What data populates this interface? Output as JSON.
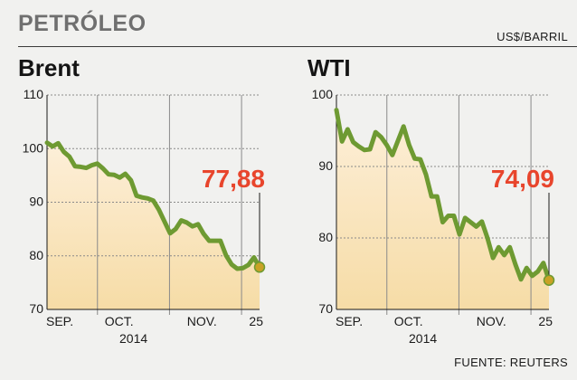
{
  "header": {
    "title": "PETRÓLEO",
    "unit": "US$/BARRIL"
  },
  "source": "FUENTE: REUTERS",
  "colors": {
    "line": "#6e9a32",
    "marker": "#c9a225",
    "last_value": "#e8452c",
    "fill_top": "#f6dca6",
    "fill_bottom": "#fdefd9",
    "grid": "#8a8a8a"
  },
  "chart_data": [
    {
      "type": "area",
      "title": "Brent",
      "last_value_label": "77,88",
      "ylim": [
        70,
        110
      ],
      "yticks": [
        "110",
        "100",
        "90",
        "80",
        "70"
      ],
      "xlim": [
        1,
        60
      ],
      "xticks": [
        {
          "label": "SEP.",
          "x": 1
        },
        {
          "label": "OCT.",
          "x": 21
        },
        {
          "label": "NOV.",
          "x": 44
        },
        {
          "label": "25",
          "x": 60
        }
      ],
      "month_dividers": [
        15,
        35,
        55
      ],
      "year_label": "2014",
      "values": [
        101.1,
        100.4,
        101.0,
        99.4,
        98.5,
        96.7,
        96.6,
        96.4,
        96.9,
        97.2,
        96.3,
        95.2,
        95.1,
        94.6,
        95.3,
        94.1,
        91.2,
        90.9,
        90.7,
        90.3,
        88.6,
        86.4,
        84.2,
        85.0,
        86.6,
        86.2,
        85.5,
        85.9,
        84.1,
        82.8,
        82.8,
        82.8,
        80.1,
        78.4,
        77.6,
        77.7,
        78.3,
        79.7,
        77.88
      ]
    },
    {
      "type": "area",
      "title": "WTI",
      "last_value_label": "74,09",
      "ylim": [
        70,
        100
      ],
      "yticks": [
        "100",
        "90",
        "80",
        "70"
      ],
      "xlim": [
        1,
        60
      ],
      "xticks": [
        {
          "label": "SEP.",
          "x": 1
        },
        {
          "label": "OCT.",
          "x": 21
        },
        {
          "label": "NOV.",
          "x": 44
        },
        {
          "label": "25",
          "x": 60
        }
      ],
      "month_dividers": [
        15,
        35,
        55
      ],
      "year_label": "2014",
      "values": [
        97.9,
        93.5,
        95.2,
        93.4,
        92.8,
        92.3,
        92.4,
        94.8,
        94.1,
        93.0,
        91.6,
        93.6,
        95.6,
        93.0,
        91.1,
        91.0,
        88.9,
        85.8,
        85.8,
        82.2,
        83.1,
        83.1,
        80.5,
        82.8,
        82.2,
        81.6,
        82.3,
        80.0,
        77.2,
        78.7,
        77.6,
        78.7,
        76.3,
        74.2,
        75.8,
        74.7,
        75.3,
        76.5,
        74.09
      ]
    }
  ]
}
